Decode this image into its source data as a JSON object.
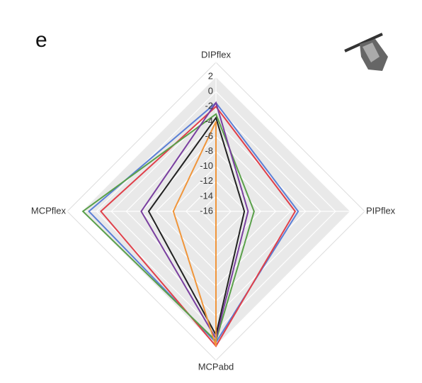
{
  "chart_data": {
    "type": "radar",
    "panel_label": "e",
    "categories": [
      "DIPflex",
      "PIPflex",
      "MCPabd",
      "MCPflex"
    ],
    "rlim": [
      -16,
      2
    ],
    "rticks": [
      2,
      0,
      -2,
      -4,
      -6,
      -8,
      -10,
      -12,
      -14,
      -16
    ],
    "grid": true,
    "series": [
      {
        "color": "#5b7fd6",
        "values": [
          -1.5,
          -5,
          1.5,
          1
        ]
      },
      {
        "color": "#e0404a",
        "values": [
          -2,
          -5.4,
          2,
          -0.6
        ]
      },
      {
        "color": "#5aa04a",
        "values": [
          -3,
          -10.9,
          1.3,
          1.8
        ]
      },
      {
        "color": "#7a3fa0",
        "values": [
          -1.5,
          -11.7,
          1,
          -6
        ]
      },
      {
        "color": "#222222",
        "values": [
          -3.5,
          -12.2,
          0.5,
          -7
        ]
      },
      {
        "color": "#f0953a",
        "values": [
          -4,
          -16,
          2,
          -10.3
        ]
      }
    ]
  }
}
